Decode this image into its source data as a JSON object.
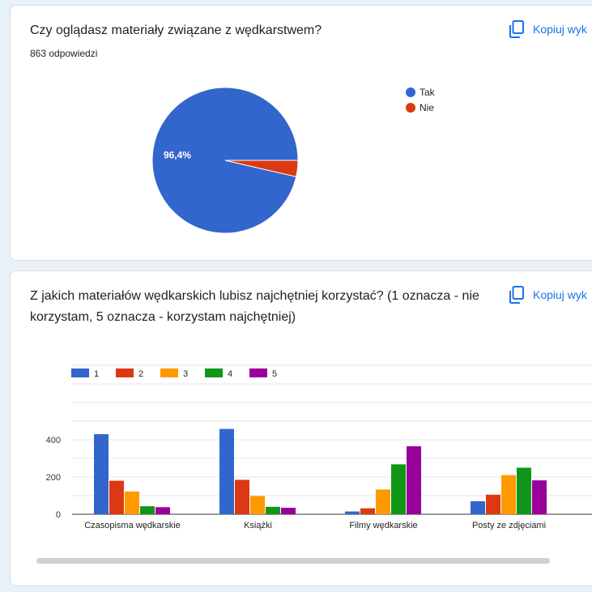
{
  "question1": {
    "title": "Czy oglądasz materiały związane z wędkarstwem?",
    "responses": "863 odpowiedzi",
    "copy_label": "Kopiuj wyk",
    "copy_icon": "copy-icon"
  },
  "question2": {
    "title": "Z jakich materiałów wędkarskich lubisz najchętniej korzystać? (1 oznacza - nie korzystam, 5 oznacza - korzystam najchętniej)",
    "copy_label": "Kopiuj wyk",
    "copy_icon": "copy-icon"
  },
  "chart_data": [
    {
      "type": "pie",
      "labels": [
        "Tak",
        "Nie"
      ],
      "values": [
        96.4,
        3.6
      ],
      "colors": [
        "#3366cc",
        "#dc3912"
      ],
      "data_labels": [
        "96,4%",
        ""
      ],
      "legend": "right"
    },
    {
      "type": "bar",
      "categories": [
        "Czasopisma wędkarskie",
        "Książki",
        "Filmy wędkarskie",
        "Posty ze zdjęciami"
      ],
      "series": [
        {
          "name": "1",
          "color": "#3366cc",
          "values": [
            430,
            458,
            15,
            70
          ]
        },
        {
          "name": "2",
          "color": "#dc3912",
          "values": [
            180,
            185,
            32,
            105
          ]
        },
        {
          "name": "3",
          "color": "#ff9900",
          "values": [
            122,
            98,
            133,
            210
          ]
        },
        {
          "name": "4",
          "color": "#109618",
          "values": [
            43,
            40,
            268,
            250
          ]
        },
        {
          "name": "5",
          "color": "#990099",
          "values": [
            38,
            35,
            365,
            182
          ]
        }
      ],
      "yticks": [
        "0",
        "200",
        "400"
      ],
      "ylim": [
        0,
        800
      ],
      "grid": true,
      "legend": "top-left"
    }
  ]
}
